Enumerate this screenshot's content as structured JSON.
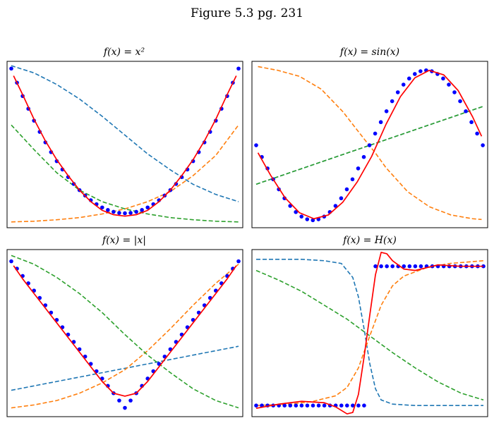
{
  "figure": {
    "title": "Figure 5.3 pg. 231"
  },
  "colors": {
    "data_points": "#0000ff",
    "fit": "#ff0000",
    "basis_1": "#1f77b4",
    "basis_2": "#ff7f0e",
    "basis_3": "#2ca02c"
  },
  "chart_data": [
    {
      "type": "line",
      "title": "f(x) = x²",
      "xlim": [
        -1,
        1
      ],
      "ylim": [
        -0.1,
        1.05
      ],
      "grid": false,
      "data_points": {
        "x": [
          -1.0,
          -0.95,
          -0.9,
          -0.85,
          -0.8,
          -0.75,
          -0.7,
          -0.65,
          -0.6,
          -0.55,
          -0.5,
          -0.45,
          -0.4,
          -0.35,
          -0.3,
          -0.25,
          -0.2,
          -0.15,
          -0.1,
          -0.05,
          0.0,
          0.05,
          0.1,
          0.15,
          0.2,
          0.25,
          0.3,
          0.35,
          0.4,
          0.45,
          0.5,
          0.55,
          0.6,
          0.65,
          0.7,
          0.75,
          0.8,
          0.85,
          0.9,
          0.95,
          1.0
        ],
        "y": [
          1.0,
          0.9025,
          0.81,
          0.7225,
          0.64,
          0.5625,
          0.49,
          0.4225,
          0.36,
          0.3025,
          0.25,
          0.2025,
          0.16,
          0.1225,
          0.09,
          0.0625,
          0.04,
          0.0225,
          0.01,
          0.0025,
          0.0,
          0.0025,
          0.01,
          0.0225,
          0.04,
          0.0625,
          0.09,
          0.1225,
          0.16,
          0.2025,
          0.25,
          0.3025,
          0.36,
          0.4225,
          0.49,
          0.5625,
          0.64,
          0.7225,
          0.81,
          0.9025,
          1.0
        ]
      },
      "fit": {
        "x": [
          -0.98,
          -0.9,
          -0.8,
          -0.7,
          -0.6,
          -0.5,
          -0.4,
          -0.3,
          -0.2,
          -0.1,
          0.0,
          0.1,
          0.2,
          0.3,
          0.4,
          0.5,
          0.6,
          0.7,
          0.8,
          0.9,
          0.98
        ],
        "y": [
          0.95,
          0.82,
          0.65,
          0.5,
          0.37,
          0.26,
          0.16,
          0.08,
          0.02,
          -0.01,
          -0.02,
          -0.01,
          0.02,
          0.08,
          0.16,
          0.26,
          0.37,
          0.5,
          0.65,
          0.82,
          0.95
        ]
      },
      "basis": [
        {
          "x": [
            -1,
            -0.8,
            -0.6,
            -0.4,
            -0.2,
            0,
            0.2,
            0.4,
            0.6,
            0.8,
            1
          ],
          "y": [
            1.02,
            0.97,
            0.89,
            0.79,
            0.67,
            0.54,
            0.41,
            0.3,
            0.2,
            0.13,
            0.08
          ]
        },
        {
          "x": [
            -1,
            -0.8,
            -0.6,
            -0.4,
            -0.2,
            0,
            0.2,
            0.4,
            0.6,
            0.8,
            1
          ],
          "y": [
            -0.06,
            -0.055,
            -0.045,
            -0.03,
            -0.005,
            0.03,
            0.08,
            0.15,
            0.26,
            0.4,
            0.61
          ]
        },
        {
          "x": [
            -1,
            -0.8,
            -0.6,
            -0.4,
            -0.2,
            0,
            0.2,
            0.4,
            0.6,
            0.8,
            1
          ],
          "y": [
            0.61,
            0.44,
            0.28,
            0.16,
            0.08,
            0.03,
            -0.005,
            -0.03,
            -0.045,
            -0.055,
            -0.06
          ]
        }
      ]
    },
    {
      "type": "line",
      "title": "f(x) = sin(x)",
      "xlim": [
        0,
        6.3
      ],
      "ylim": [
        -1.1,
        1.12
      ],
      "grid": false,
      "data_points": {
        "x": [
          0.0,
          0.1571,
          0.3142,
          0.4712,
          0.6283,
          0.7854,
          0.9425,
          1.0996,
          1.2566,
          1.4137,
          1.5708,
          1.7279,
          1.885,
          2.042,
          2.1991,
          2.3562,
          2.5133,
          2.6704,
          2.8274,
          2.9845,
          3.1416,
          3.2987,
          3.4558,
          3.6128,
          3.7699,
          3.927,
          4.0841,
          4.2412,
          4.3982,
          4.5553,
          4.7124,
          4.8695,
          5.0265,
          5.1836,
          5.3407,
          5.4978,
          5.6549,
          5.8119,
          5.969,
          6.1261,
          6.2832
        ],
        "y": [
          0.0,
          -0.1564,
          -0.309,
          -0.454,
          -0.5878,
          -0.7071,
          -0.809,
          -0.891,
          -0.9511,
          -0.9877,
          -1.0,
          -0.9877,
          -0.9511,
          -0.891,
          -0.809,
          -0.7071,
          -0.5878,
          -0.454,
          -0.309,
          -0.1564,
          0.0,
          0.1564,
          0.309,
          0.454,
          0.5878,
          0.7071,
          0.809,
          0.891,
          0.9511,
          0.9877,
          1.0,
          0.9877,
          0.9511,
          0.891,
          0.809,
          0.7071,
          0.5878,
          0.454,
          0.309,
          0.1564,
          0.0
        ]
      },
      "fit": {
        "x": [
          0.05,
          0.4,
          0.8,
          1.2,
          1.6,
          2.0,
          2.4,
          2.8,
          3.2,
          3.6,
          4.0,
          4.4,
          4.8,
          5.2,
          5.6,
          6.0,
          6.25
        ],
        "y": [
          -0.1,
          -0.4,
          -0.7,
          -0.9,
          -0.98,
          -0.93,
          -0.76,
          -0.49,
          -0.15,
          0.28,
          0.65,
          0.9,
          1.0,
          0.94,
          0.73,
          0.38,
          0.12
        ]
      },
      "basis": [
        {
          "x": [
            0,
            6.3
          ],
          "y": [
            -0.52,
            0.52
          ]
        },
        {
          "x": [
            0.05,
            0.6,
            1.2,
            1.8,
            2.4,
            3.0,
            3.3,
            3.6,
            4.2,
            4.8,
            5.4,
            6.0,
            6.25
          ],
          "y": [
            1.05,
            1.0,
            0.92,
            0.75,
            0.45,
            0.08,
            -0.1,
            -0.3,
            -0.62,
            -0.82,
            -0.93,
            -0.98,
            -0.99
          ]
        },
        {
          "x": [
            0,
            6.3
          ],
          "y": [
            -0.52,
            0.52
          ]
        }
      ]
    },
    {
      "type": "line",
      "title": "f(x) = |x|",
      "xlim": [
        -1,
        1
      ],
      "ylim": [
        -0.06,
        1.08
      ],
      "grid": false,
      "data_points": {
        "x": [
          -1.0,
          -0.95,
          -0.9,
          -0.85,
          -0.8,
          -0.75,
          -0.7,
          -0.65,
          -0.6,
          -0.55,
          -0.5,
          -0.45,
          -0.4,
          -0.35,
          -0.3,
          -0.25,
          -0.2,
          -0.15,
          -0.1,
          -0.05,
          0.0,
          0.05,
          0.1,
          0.15,
          0.2,
          0.25,
          0.3,
          0.35,
          0.4,
          0.45,
          0.5,
          0.55,
          0.6,
          0.65,
          0.7,
          0.75,
          0.8,
          0.85,
          0.9,
          0.95,
          1.0
        ],
        "y": [
          1.0,
          0.95,
          0.9,
          0.85,
          0.8,
          0.75,
          0.7,
          0.65,
          0.6,
          0.55,
          0.5,
          0.45,
          0.4,
          0.35,
          0.3,
          0.25,
          0.2,
          0.15,
          0.1,
          0.05,
          0.0,
          0.05,
          0.1,
          0.15,
          0.2,
          0.25,
          0.3,
          0.35,
          0.4,
          0.45,
          0.5,
          0.55,
          0.6,
          0.65,
          0.7,
          0.75,
          0.8,
          0.85,
          0.9,
          0.95,
          1.0
        ]
      },
      "fit": {
        "x": [
          -0.98,
          -0.9,
          -0.8,
          -0.7,
          -0.6,
          -0.5,
          -0.4,
          -0.3,
          -0.2,
          -0.1,
          0.0,
          0.1,
          0.2,
          0.3,
          0.4,
          0.5,
          0.6,
          0.7,
          0.8,
          0.9,
          0.98
        ],
        "y": [
          0.97,
          0.88,
          0.78,
          0.68,
          0.58,
          0.48,
          0.38,
          0.28,
          0.18,
          0.1,
          0.08,
          0.1,
          0.18,
          0.28,
          0.38,
          0.48,
          0.58,
          0.68,
          0.78,
          0.88,
          0.97
        ]
      },
      "basis": [
        {
          "x": [
            -1,
            1
          ],
          "y": [
            0.12,
            0.42
          ]
        },
        {
          "x": [
            -1,
            -0.8,
            -0.6,
            -0.4,
            -0.2,
            0,
            0.2,
            0.4,
            0.6,
            0.8,
            1
          ],
          "y": [
            0.0,
            0.02,
            0.05,
            0.1,
            0.17,
            0.26,
            0.39,
            0.54,
            0.7,
            0.85,
            0.98
          ]
        },
        {
          "x": [
            -1,
            -0.8,
            -0.6,
            -0.4,
            -0.2,
            0,
            0.2,
            0.4,
            0.6,
            0.8,
            1
          ],
          "y": [
            1.04,
            0.98,
            0.89,
            0.78,
            0.65,
            0.5,
            0.36,
            0.24,
            0.13,
            0.05,
            0.0
          ]
        }
      ]
    },
    {
      "type": "line",
      "title": "f(x) = H(x)",
      "xlim": [
        -1,
        1
      ],
      "ylim": [
        -0.08,
        1.12
      ],
      "grid": false,
      "data_points": {
        "x": [
          -1.0,
          -0.95,
          -0.9,
          -0.85,
          -0.8,
          -0.75,
          -0.7,
          -0.65,
          -0.6,
          -0.55,
          -0.5,
          -0.45,
          -0.4,
          -0.35,
          -0.3,
          -0.25,
          -0.2,
          -0.15,
          -0.1,
          -0.05,
          0.05,
          0.1,
          0.15,
          0.2,
          0.25,
          0.3,
          0.35,
          0.4,
          0.45,
          0.5,
          0.55,
          0.6,
          0.65,
          0.7,
          0.75,
          0.8,
          0.85,
          0.9,
          0.95,
          1.0
        ],
        "y": [
          0,
          0,
          0,
          0,
          0,
          0,
          0,
          0,
          0,
          0,
          0,
          0,
          0,
          0,
          0,
          0,
          0,
          0,
          0,
          0,
          1,
          1,
          1,
          1,
          1,
          1,
          1,
          1,
          1,
          1,
          1,
          1,
          1,
          1,
          1,
          1,
          1,
          1,
          1,
          1
        ]
      },
      "fit": {
        "x": [
          -1.0,
          -0.8,
          -0.6,
          -0.4,
          -0.3,
          -0.2,
          -0.15,
          -0.1,
          -0.05,
          0.0,
          0.05,
          0.1,
          0.15,
          0.2,
          0.3,
          0.4,
          0.5,
          0.6,
          0.8,
          1.0
        ],
        "y": [
          -0.02,
          0.01,
          0.03,
          0.02,
          -0.01,
          -0.06,
          -0.05,
          0.08,
          0.35,
          0.65,
          0.94,
          1.1,
          1.09,
          1.04,
          0.98,
          0.97,
          0.99,
          1.01,
          1.0,
          1.0
        ]
      },
      "basis": [
        {
          "x": [
            -1,
            -0.6,
            -0.4,
            -0.25,
            -0.15,
            -0.1,
            -0.05,
            0,
            0.05,
            0.1,
            0.2,
            0.4,
            0.7,
            1
          ],
          "y": [
            1.05,
            1.05,
            1.04,
            1.02,
            0.92,
            0.78,
            0.55,
            0.3,
            0.12,
            0.04,
            0.01,
            0.0,
            0.0,
            0.0
          ]
        },
        {
          "x": [
            -1,
            -0.7,
            -0.5,
            -0.3,
            -0.2,
            -0.1,
            0,
            0.1,
            0.2,
            0.3,
            0.5,
            0.7,
            1
          ],
          "y": [
            0.0,
            0.01,
            0.03,
            0.07,
            0.13,
            0.27,
            0.5,
            0.72,
            0.86,
            0.93,
            0.99,
            1.02,
            1.04
          ]
        },
        {
          "x": [
            -1,
            -0.8,
            -0.6,
            -0.4,
            -0.2,
            0,
            0.2,
            0.4,
            0.6,
            0.8,
            1
          ],
          "y": [
            0.97,
            0.9,
            0.82,
            0.72,
            0.62,
            0.5,
            0.38,
            0.27,
            0.17,
            0.09,
            0.04
          ]
        }
      ]
    }
  ]
}
